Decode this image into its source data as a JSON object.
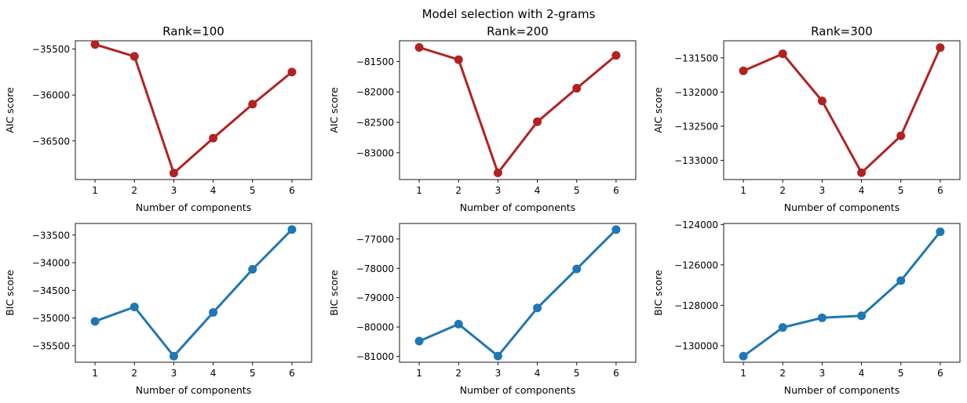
{
  "suptitle": "Model selection with 2-grams",
  "colors": {
    "aic": "#b22222",
    "bic": "#1f77b4"
  },
  "chart_data": [
    {
      "type": "line",
      "metric": "aic",
      "title": "Rank=100",
      "xlabel": "Number of components",
      "ylabel": "AIC score",
      "x": [
        1,
        2,
        3,
        4,
        5,
        6
      ],
      "values": [
        -35450,
        -35580,
        -36850,
        -36470,
        -36100,
        -35750
      ],
      "xlim": [
        0.5,
        6.5
      ],
      "ylim": [
        -36920,
        -35410
      ],
      "yticks": [
        -35500,
        -36000,
        -36500
      ],
      "ytick_labels": [
        "−35500",
        "−36000",
        "−36500"
      ]
    },
    {
      "type": "line",
      "metric": "aic",
      "title": "Rank=200",
      "xlabel": "Number of components",
      "ylabel": "AIC score",
      "x": [
        1,
        2,
        3,
        4,
        5,
        6
      ],
      "values": [
        -81270,
        -81470,
        -83330,
        -82490,
        -81940,
        -81400
      ],
      "xlim": [
        0.5,
        6.5
      ],
      "ylim": [
        -83440,
        -81160
      ],
      "yticks": [
        -81500,
        -82000,
        -82500,
        -83000
      ],
      "ytick_labels": [
        "−81500",
        "−82000",
        "−82500",
        "−83000"
      ]
    },
    {
      "type": "line",
      "metric": "aic",
      "title": "Rank=300",
      "xlabel": "Number of components",
      "ylabel": "AIC score",
      "x": [
        1,
        2,
        3,
        4,
        5,
        6
      ],
      "values": [
        -131690,
        -131440,
        -132130,
        -133180,
        -132640,
        -131350
      ],
      "xlim": [
        0.5,
        6.5
      ],
      "ylim": [
        -133280,
        -131250
      ],
      "yticks": [
        -131500,
        -132000,
        -132500,
        -133000
      ],
      "ytick_labels": [
        "−131500",
        "−132000",
        "−132500",
        "−133000"
      ]
    },
    {
      "type": "line",
      "metric": "bic",
      "title": "",
      "xlabel": "Number of components",
      "ylabel": "BIC score",
      "x": [
        1,
        2,
        3,
        4,
        5,
        6
      ],
      "values": [
        -35060,
        -34800,
        -35690,
        -34900,
        -34120,
        -33400
      ],
      "xlim": [
        0.5,
        6.5
      ],
      "ylim": [
        -35800,
        -33290
      ],
      "yticks": [
        -33500,
        -34000,
        -34500,
        -35000,
        -35500
      ],
      "ytick_labels": [
        "−33500",
        "−34000",
        "−34500",
        "−35000",
        "−35500"
      ]
    },
    {
      "type": "line",
      "metric": "bic",
      "title": "",
      "xlabel": "Number of components",
      "ylabel": "BIC score",
      "x": [
        1,
        2,
        3,
        4,
        5,
        6
      ],
      "values": [
        -80480,
        -79900,
        -80990,
        -79350,
        -78020,
        -76680
      ],
      "xlim": [
        0.5,
        6.5
      ],
      "ylim": [
        -81200,
        -76470
      ],
      "yticks": [
        -77000,
        -78000,
        -79000,
        -80000,
        -81000
      ],
      "ytick_labels": [
        "−77000",
        "−78000",
        "−79000",
        "−80000",
        "−81000"
      ]
    },
    {
      "type": "line",
      "metric": "bic",
      "title": "",
      "xlabel": "Number of components",
      "ylabel": "BIC score",
      "x": [
        1,
        2,
        3,
        4,
        5,
        6
      ],
      "values": [
        -130520,
        -129100,
        -128620,
        -128520,
        -126780,
        -124360
      ],
      "xlim": [
        0.5,
        6.5
      ],
      "ylim": [
        -130820,
        -123950
      ],
      "yticks": [
        -124000,
        -126000,
        -128000,
        -130000
      ],
      "ytick_labels": [
        "−124000",
        "−126000",
        "−128000",
        "−130000"
      ]
    }
  ]
}
